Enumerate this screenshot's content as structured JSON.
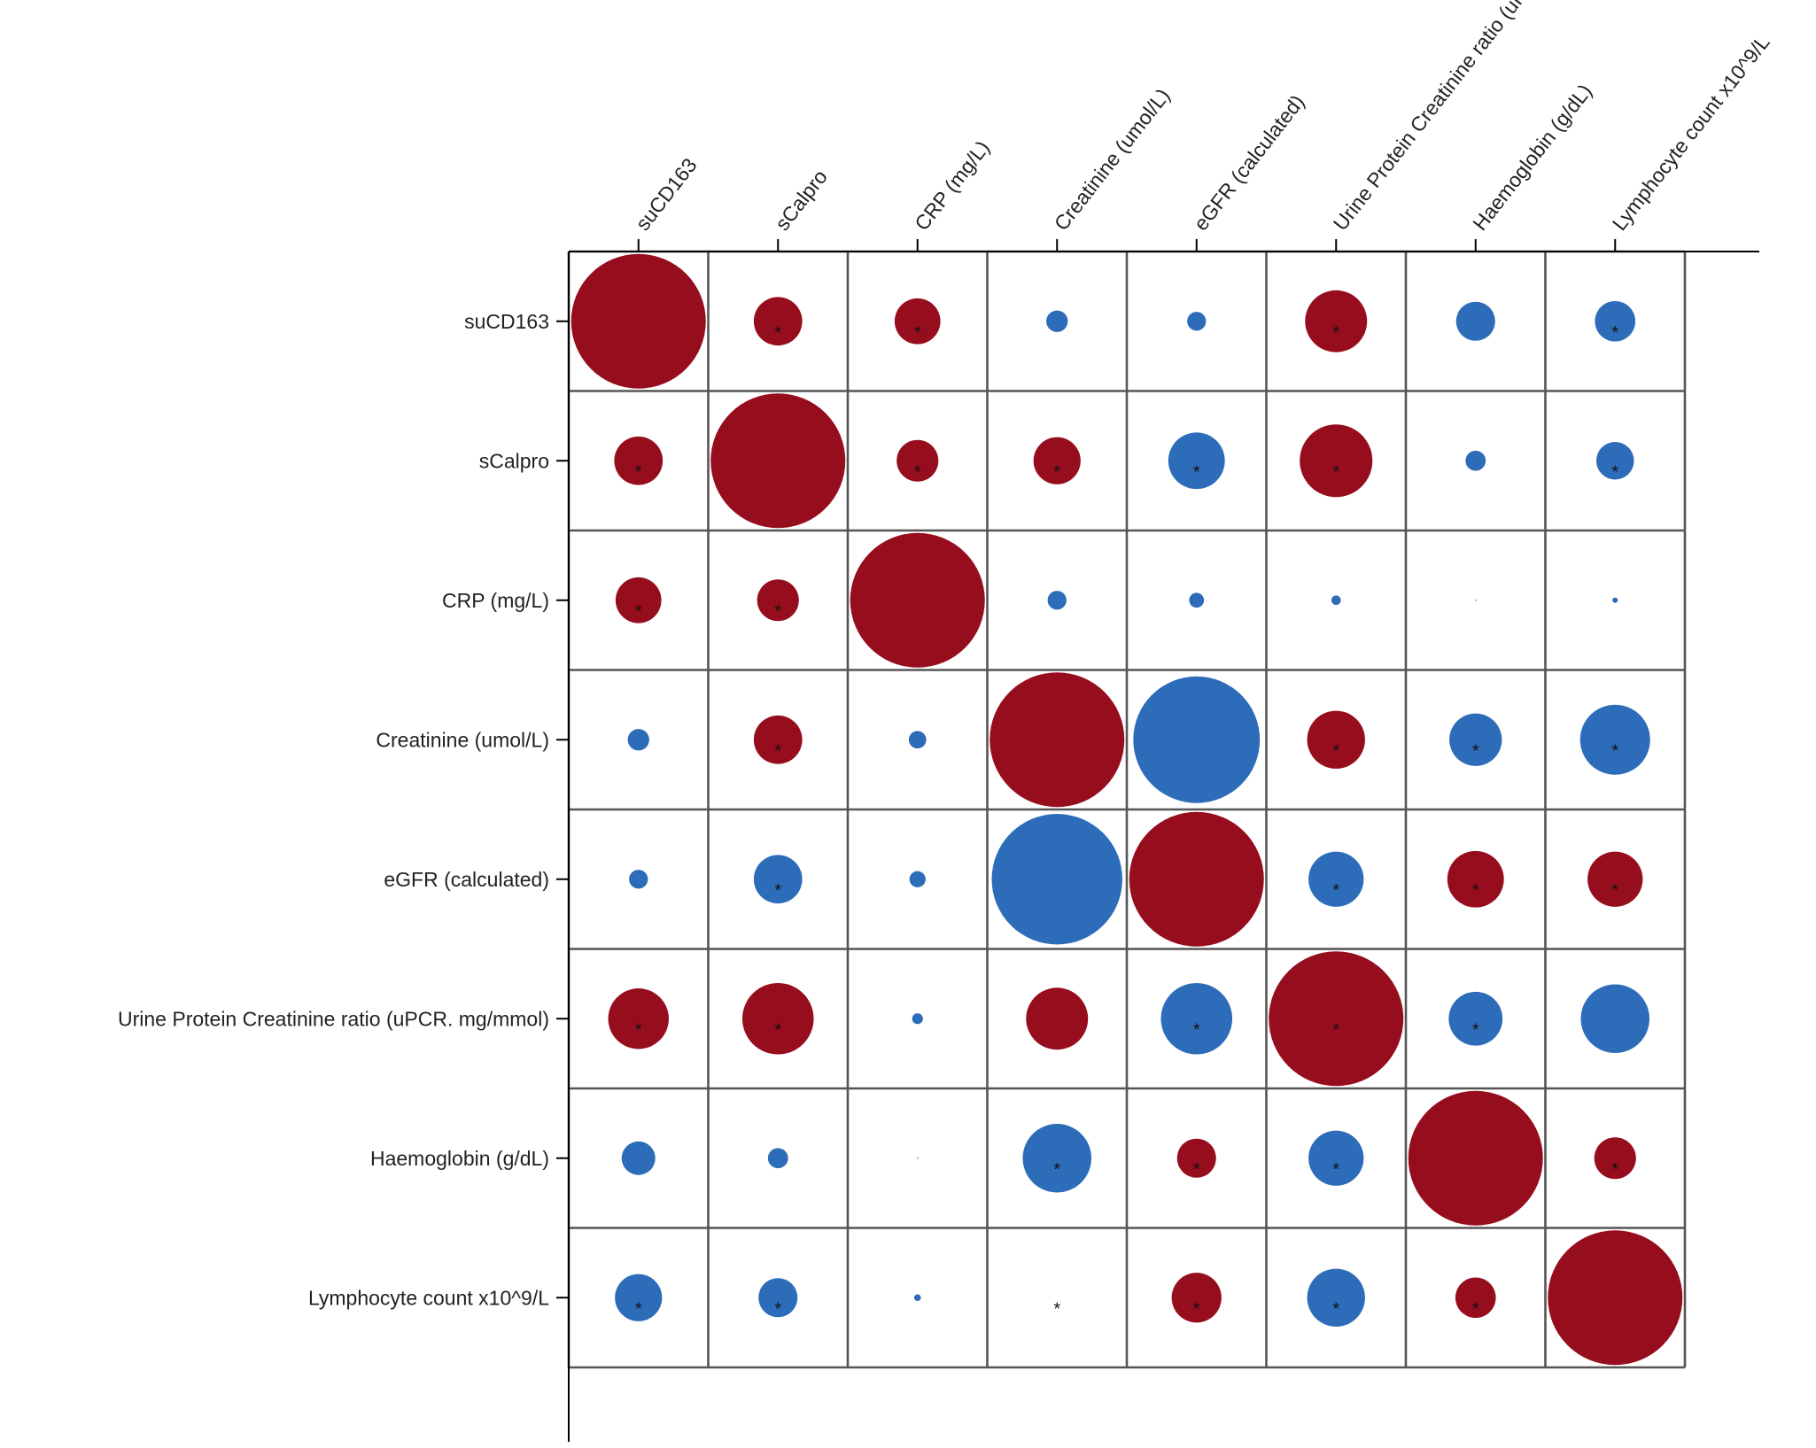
{
  "chart_data": {
    "type": "correlation_matrix",
    "variables": [
      "suCD163",
      "sCalpro",
      "CRP (mg/L)",
      "Creatinine (umol/L)",
      "eGFR (calculated)",
      "Urine Protein Creatinine ratio (uPCR. mg/mmol)",
      "Haemoglobin (g/dL)",
      "Lymphocyte count x10^9/L"
    ],
    "row_labels": [
      "suCD163",
      "sCalpro",
      "CRP (mg/L)",
      "Creatinine (umol/L)",
      "eGFR (calculated)",
      "Urine Protein Creatinine ratio (uPCR. mg/mmol)",
      "Haemoglobin (g/dL)",
      "Lymphocyte count x10^9/L"
    ],
    "column_labels": [
      "suCD163",
      "sCalpro",
      "CRP (mg/L)",
      "Creatinine (umol/L)",
      "eGFR (calculated)",
      "Urine Protein Creatinine ratio (uPCR. mg/mmol)",
      "Haemoglobin (g/dL)",
      "Lymphocyte count x10^9/L"
    ],
    "correlations": [
      [
        1.0,
        0.36,
        0.34,
        -0.16,
        -0.14,
        0.46,
        -0.29,
        -0.3
      ],
      [
        0.36,
        1.0,
        0.31,
        0.35,
        -0.42,
        0.54,
        -0.15,
        -0.28
      ],
      [
        0.34,
        0.31,
        1.0,
        -0.14,
        -0.11,
        -0.07,
        -0.01,
        -0.04
      ],
      [
        -0.16,
        0.36,
        -0.13,
        1.0,
        -0.94,
        0.43,
        -0.39,
        -0.52
      ],
      [
        -0.14,
        -0.36,
        -0.12,
        -0.97,
        1.0,
        -0.41,
        0.42,
        0.41
      ],
      [
        0.45,
        0.53,
        -0.08,
        0.46,
        -0.53,
        1.0,
        -0.4,
        -0.51
      ],
      [
        -0.25,
        -0.15,
        -0.01,
        -0.51,
        0.29,
        -0.41,
        1.0,
        0.31
      ],
      [
        -0.35,
        -0.29,
        -0.05,
        0.0,
        0.37,
        -0.43,
        0.3,
        1.0
      ]
    ],
    "significant": [
      [
        false,
        true,
        true,
        false,
        false,
        true,
        false,
        true
      ],
      [
        true,
        false,
        true,
        true,
        true,
        true,
        false,
        true
      ],
      [
        true,
        true,
        false,
        false,
        false,
        false,
        false,
        false
      ],
      [
        false,
        true,
        false,
        false,
        false,
        true,
        true,
        true
      ],
      [
        false,
        true,
        false,
        false,
        false,
        true,
        true,
        true
      ],
      [
        true,
        true,
        false,
        false,
        true,
        true,
        true,
        false
      ],
      [
        false,
        false,
        false,
        true,
        true,
        true,
        false,
        true
      ],
      [
        true,
        true,
        false,
        true,
        true,
        true,
        true,
        false
      ]
    ],
    "significance_marker": "*",
    "value_range": [
      -1,
      1
    ],
    "colors": {
      "positive": "#960D1E",
      "negative": "#2D6CB9",
      "marker": "#111111"
    },
    "title": "",
    "xlabel": "",
    "ylabel": ""
  }
}
